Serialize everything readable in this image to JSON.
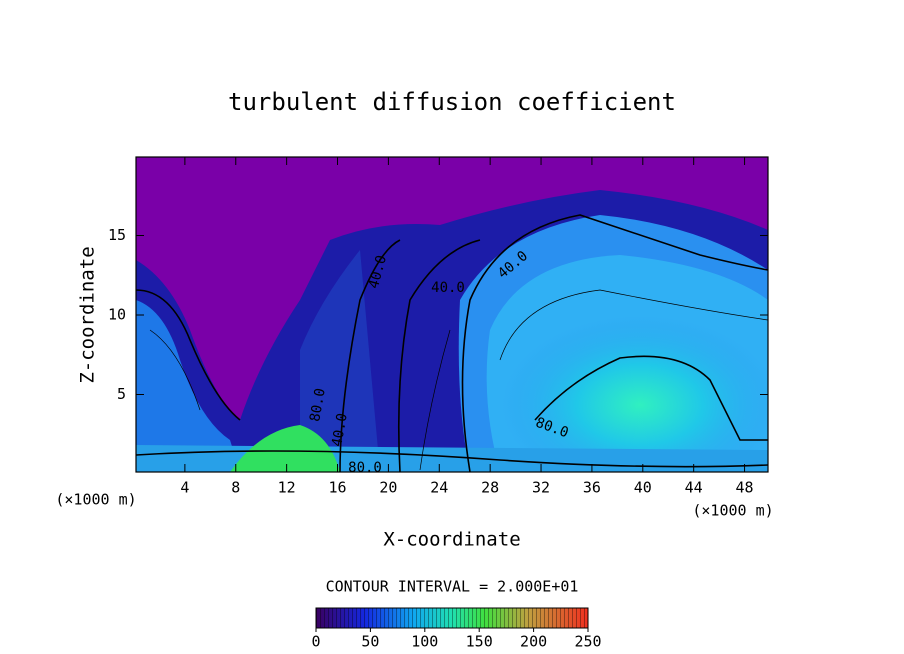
{
  "chart_data": {
    "type": "contour",
    "title": "turbulent diffusion coefficient",
    "x_label": "X-coordinate",
    "y_label": "Z-coordinate",
    "x_unit_label": "(×1000 m)",
    "y_unit_label": "(×1000 m)",
    "xlim": [
      0,
      50
    ],
    "xticks": [
      4,
      8,
      12,
      16,
      20,
      24,
      28,
      32,
      36,
      40,
      44,
      48
    ],
    "ylim": [
      0,
      20
    ],
    "yticks": [
      5,
      10,
      15
    ],
    "contour_interval_label": "CONTOUR INTERVAL = 2.000E+01",
    "contour_labels": [
      "40.0",
      "40.0",
      "40.0",
      "80.0",
      "80.0",
      "40.0",
      "80.0"
    ],
    "colorbar": {
      "lim": [
        0,
        250
      ],
      "ticks": [
        0,
        50,
        100,
        150,
        200,
        250
      ]
    }
  }
}
